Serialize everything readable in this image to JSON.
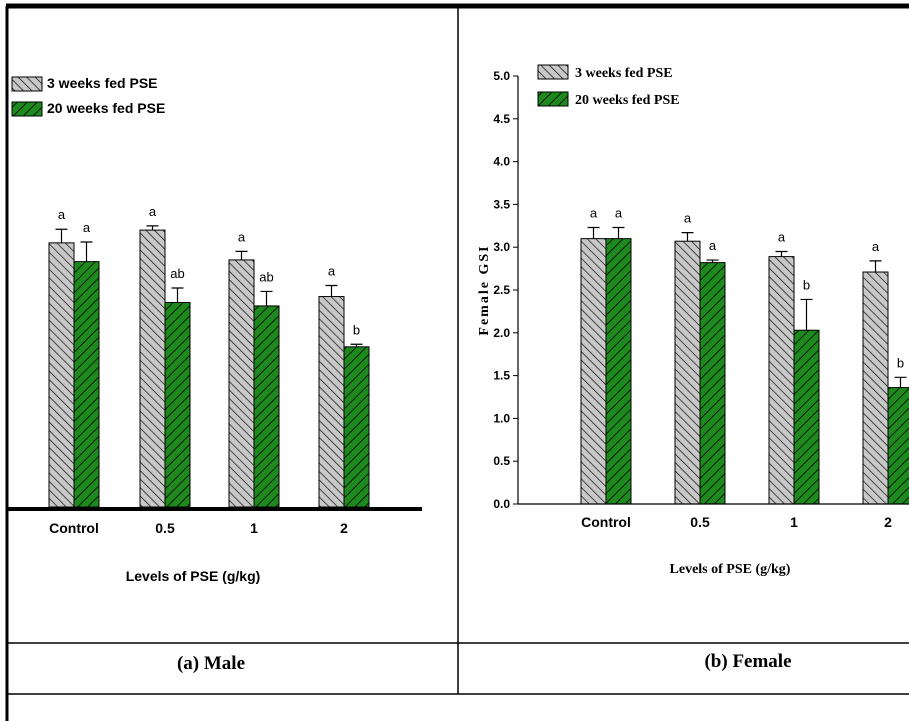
{
  "colors": {
    "series1_fill": "#c8c8c8",
    "series2_fill": "#1e8a1e",
    "hatch_stroke": "#000000",
    "frame": "#000000"
  },
  "captions": {
    "male": "(a)  Male",
    "female": "(b) Female"
  },
  "chart_data": [
    {
      "type": "bar",
      "panel": "male",
      "categories": [
        "Control",
        "0.5",
        "1",
        "2"
      ],
      "series": [
        {
          "name": "3 weeks fed PSE",
          "values": [
            3.1,
            3.25,
            2.9,
            2.47
          ],
          "errors": [
            0.16,
            0.05,
            0.1,
            0.13
          ],
          "letters": [
            "a",
            "a",
            "a",
            "a"
          ]
        },
        {
          "name": "20 weeks fed PSE",
          "values": [
            2.88,
            2.4,
            2.36,
            1.88
          ],
          "errors": [
            0.23,
            0.17,
            0.17,
            0.03
          ],
          "letters": [
            "a",
            "ab",
            "ab",
            "b"
          ]
        }
      ],
      "title": "",
      "xlabel": "Levels of PSE (g/kg)",
      "ylabel": "",
      "ylim": [
        0,
        5
      ],
      "y_axis_shown": false,
      "legend": "top-left",
      "grid": false
    },
    {
      "type": "bar",
      "panel": "female",
      "categories": [
        "Control",
        "0.5",
        "1",
        "2"
      ],
      "series": [
        {
          "name": "3 weeks fed PSE",
          "values": [
            3.1,
            3.07,
            2.89,
            2.71
          ],
          "errors": [
            0.13,
            0.1,
            0.06,
            0.13
          ],
          "letters": [
            "a",
            "a",
            "a",
            "a"
          ]
        },
        {
          "name": "20 weeks fed PSE",
          "values": [
            3.1,
            2.82,
            2.03,
            1.36
          ],
          "errors": [
            0.13,
            0.03,
            0.36,
            0.12
          ],
          "letters": [
            "a",
            "a",
            "b",
            "b"
          ]
        }
      ],
      "title": "",
      "xlabel": "Levels of PSE (g/kg)",
      "ylabel": "Female GSI",
      "ylim": [
        0,
        5
      ],
      "yticks": [
        "0.0",
        "0.5",
        "1.0",
        "1.5",
        "2.0",
        "2.5",
        "3.0",
        "3.5",
        "4.0",
        "4.5",
        "5.0"
      ],
      "y_axis_shown": true,
      "legend": "top-left",
      "grid": false
    }
  ]
}
